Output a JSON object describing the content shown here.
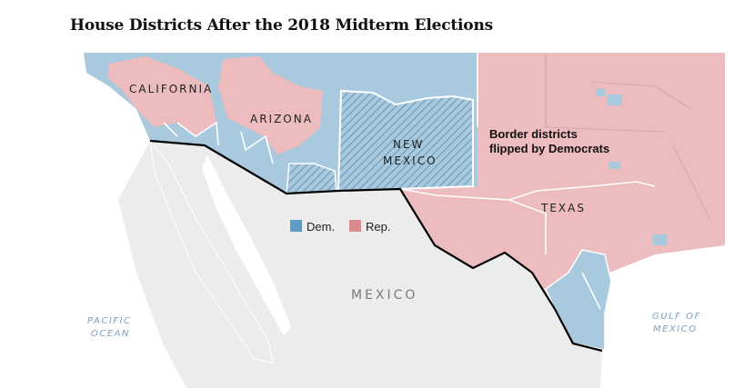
{
  "title": "House Districts After the 2018 Midterm Elections",
  "colors": {
    "dem": "#a9c9de",
    "rep": "#ecbcbf",
    "dem_swatch": "#5d9cc5",
    "rep_swatch": "#d98a8f",
    "land": "#ececec",
    "water": "#ffffff",
    "border": "#000000"
  },
  "legend": {
    "dem": "Dem.",
    "rep": "Rep."
  },
  "labels": {
    "california": "CALIFORNIA",
    "arizona": "ARIZONA",
    "new_mexico_1": "NEW",
    "new_mexico_2": "MEXICO",
    "texas": "TEXAS",
    "mexico": "MEXICO",
    "pacific_1": "PACIFIC",
    "pacific_2": "OCEAN",
    "gulf_1": "GULF OF",
    "gulf_2": "MEXICO"
  },
  "annotation": {
    "line1": "Border districts",
    "line2": "flipped by Democrats"
  }
}
